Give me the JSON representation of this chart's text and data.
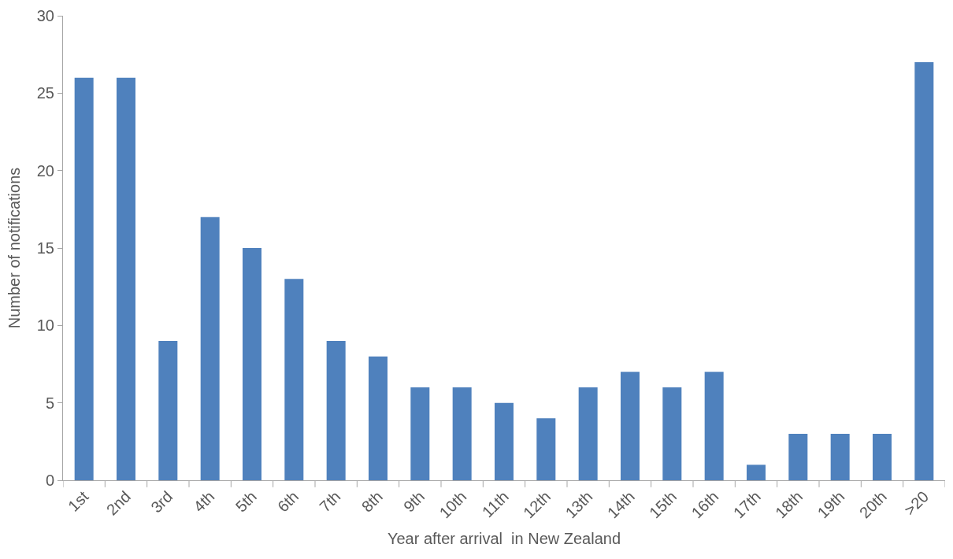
{
  "chart_data": {
    "type": "bar",
    "xlabel": "Year after arrival  in New Zealand",
    "ylabel": "Number of notifications",
    "categories": [
      "1st",
      "2nd",
      "3rd",
      "4th",
      "5th",
      "6th",
      "7th",
      "8th",
      "9th",
      "10th",
      "11th",
      "12th",
      "13th",
      "14th",
      "15th",
      "16th",
      "17th",
      "18th",
      "19th",
      "20th",
      ">20"
    ],
    "values": [
      26,
      26,
      9,
      17,
      15,
      13,
      9,
      8,
      6,
      6,
      5,
      4,
      6,
      7,
      6,
      7,
      1,
      3,
      3,
      3,
      27
    ],
    "color": "#4f81bd",
    "ylim": [
      0,
      30
    ],
    "yticks": [
      0,
      5,
      10,
      15,
      20,
      25,
      30
    ]
  }
}
